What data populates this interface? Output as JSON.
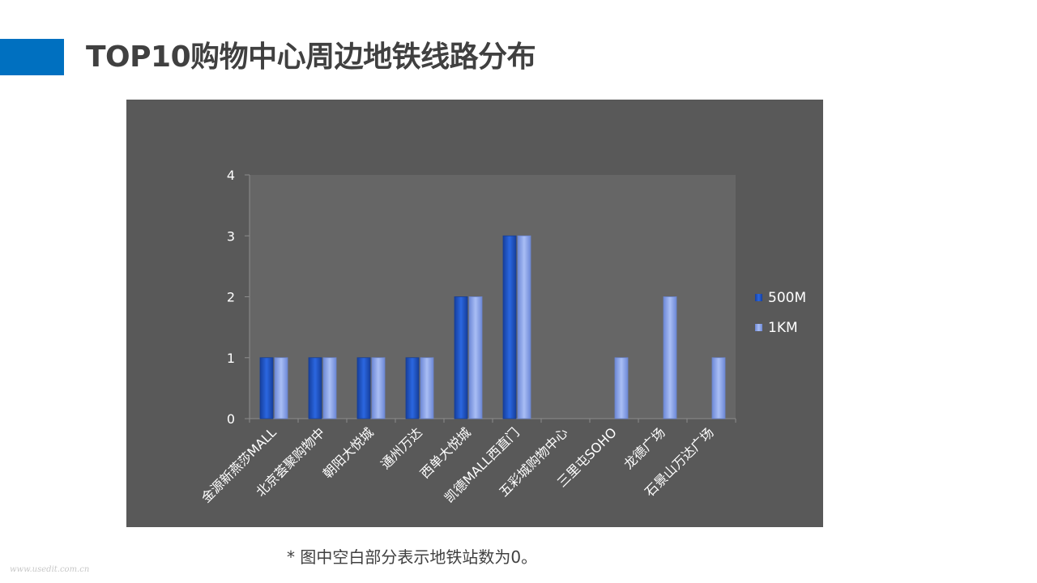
{
  "slide": {
    "title": "TOP10购物中心周边地铁线路分布",
    "footnote": "* 图中空白部分表示地铁站数为0。",
    "watermark": "www.usedit.com.cn"
  },
  "colors": {
    "accent": "#0070c0",
    "panel_bg": "#595959",
    "plot_bg": "#666666",
    "series_500m": "#1f57c9",
    "series_1km": "#8aa5ec"
  },
  "chart_data": {
    "type": "bar",
    "categories": [
      "金源新燕莎MALL",
      "北京荟聚购物中",
      "朝阳大悦城",
      "通州万达",
      "西单大悦城",
      "凯德MALL西直门",
      "五彩城购物中心",
      "三里屯SOHO",
      "龙德广场",
      "石景山万达广场"
    ],
    "series": [
      {
        "name": "500M",
        "values": [
          1,
          1,
          1,
          1,
          2,
          3,
          0,
          0,
          0,
          0
        ],
        "color": "#1f57c9"
      },
      {
        "name": "1KM",
        "values": [
          1,
          1,
          1,
          1,
          2,
          3,
          0,
          1,
          2,
          1
        ],
        "color": "#8aa5ec"
      }
    ],
    "ylim": [
      0,
      4
    ],
    "yticks": [
      0,
      1,
      2,
      3,
      4
    ],
    "grid": false,
    "legend": "right"
  }
}
